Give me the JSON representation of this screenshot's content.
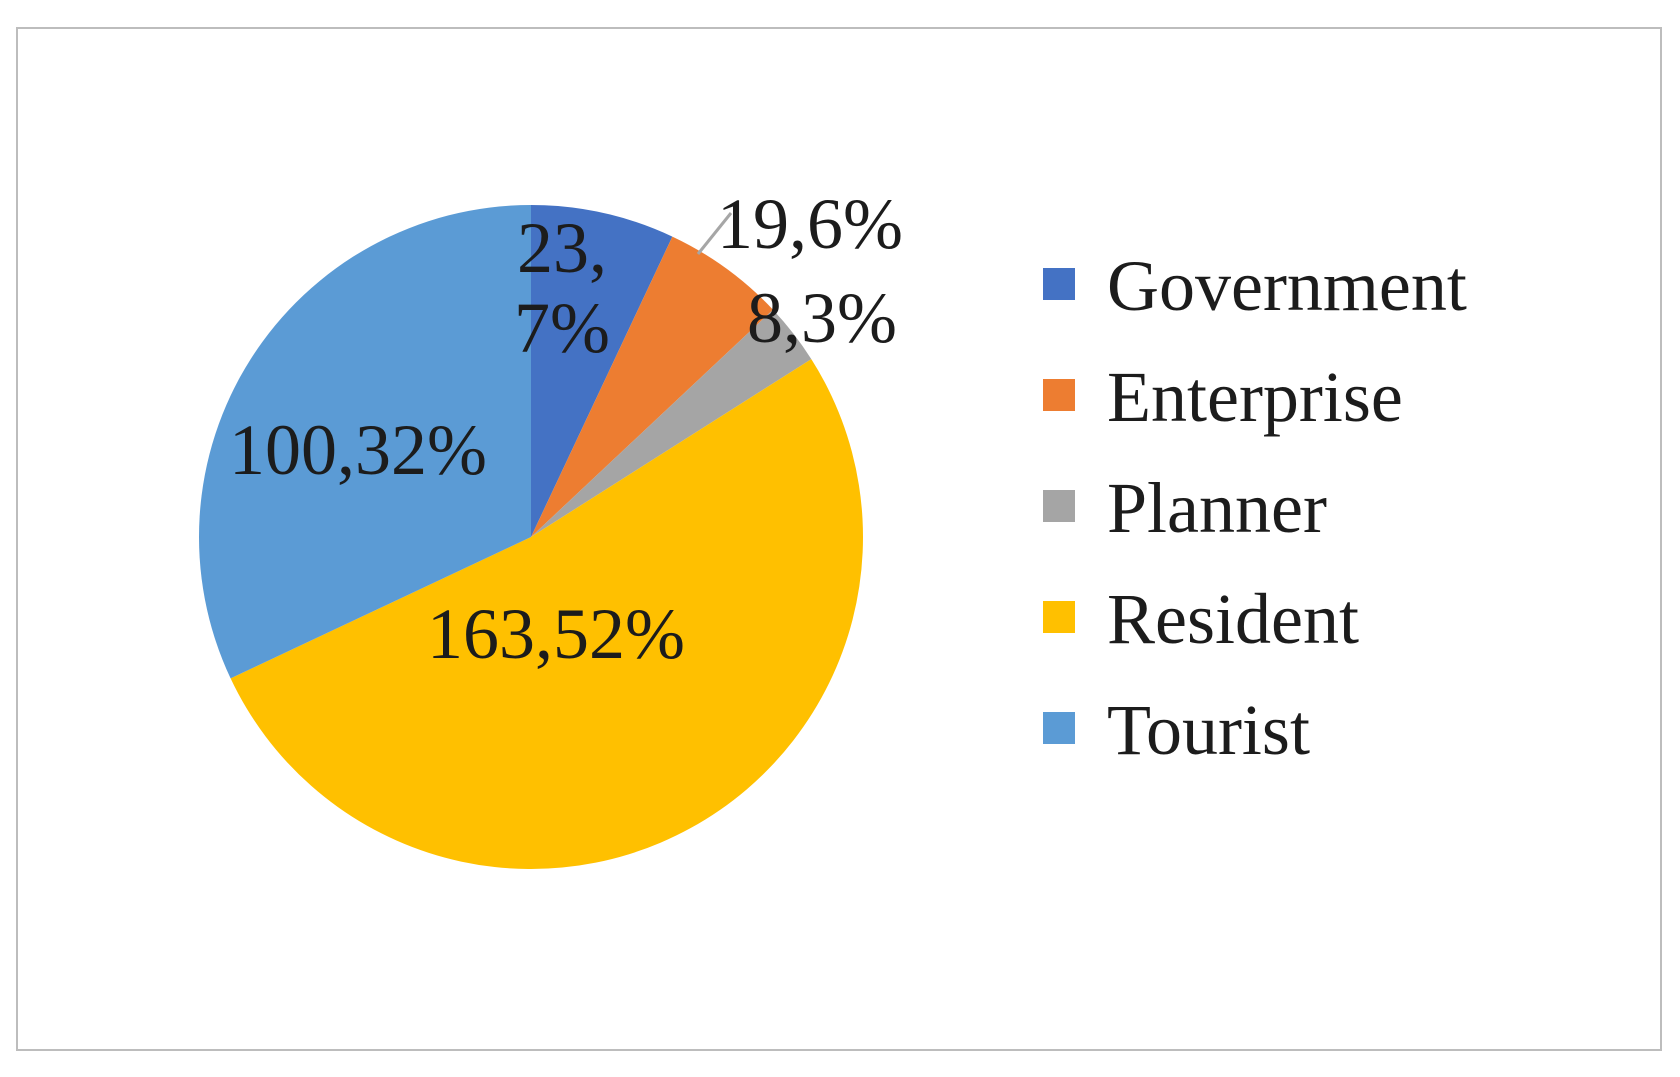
{
  "figure": {
    "background": "#ffffff",
    "border_color": "#bdbdbd",
    "label_text_color": "#1c1c1c",
    "leader_line_color": "#a6a6a6"
  },
  "chart_data": {
    "type": "pie",
    "title": "",
    "legend_position": "right",
    "direction": "clockwise",
    "start_angle_deg": 0,
    "slices": [
      {
        "name": "Government",
        "value": 23,
        "percent": 7,
        "color": "#4472C4",
        "label": "23,\n7%",
        "label_placement": "inside"
      },
      {
        "name": "Enterprise",
        "value": 19,
        "percent": 6,
        "color": "#ED7D31",
        "label": "19,6%",
        "label_placement": "outside",
        "leader_line": true
      },
      {
        "name": "Planner",
        "value": 8,
        "percent": 3,
        "color": "#A5A5A5",
        "label": "8,3%",
        "label_placement": "outside"
      },
      {
        "name": "Resident",
        "value": 163,
        "percent": 52,
        "color": "#FFC000",
        "label": "163,52%",
        "label_placement": "inside"
      },
      {
        "name": "Tourist",
        "value": 100,
        "percent": 32,
        "color": "#5B9BD5",
        "label": "100,32%",
        "label_placement": "inside"
      }
    ]
  }
}
